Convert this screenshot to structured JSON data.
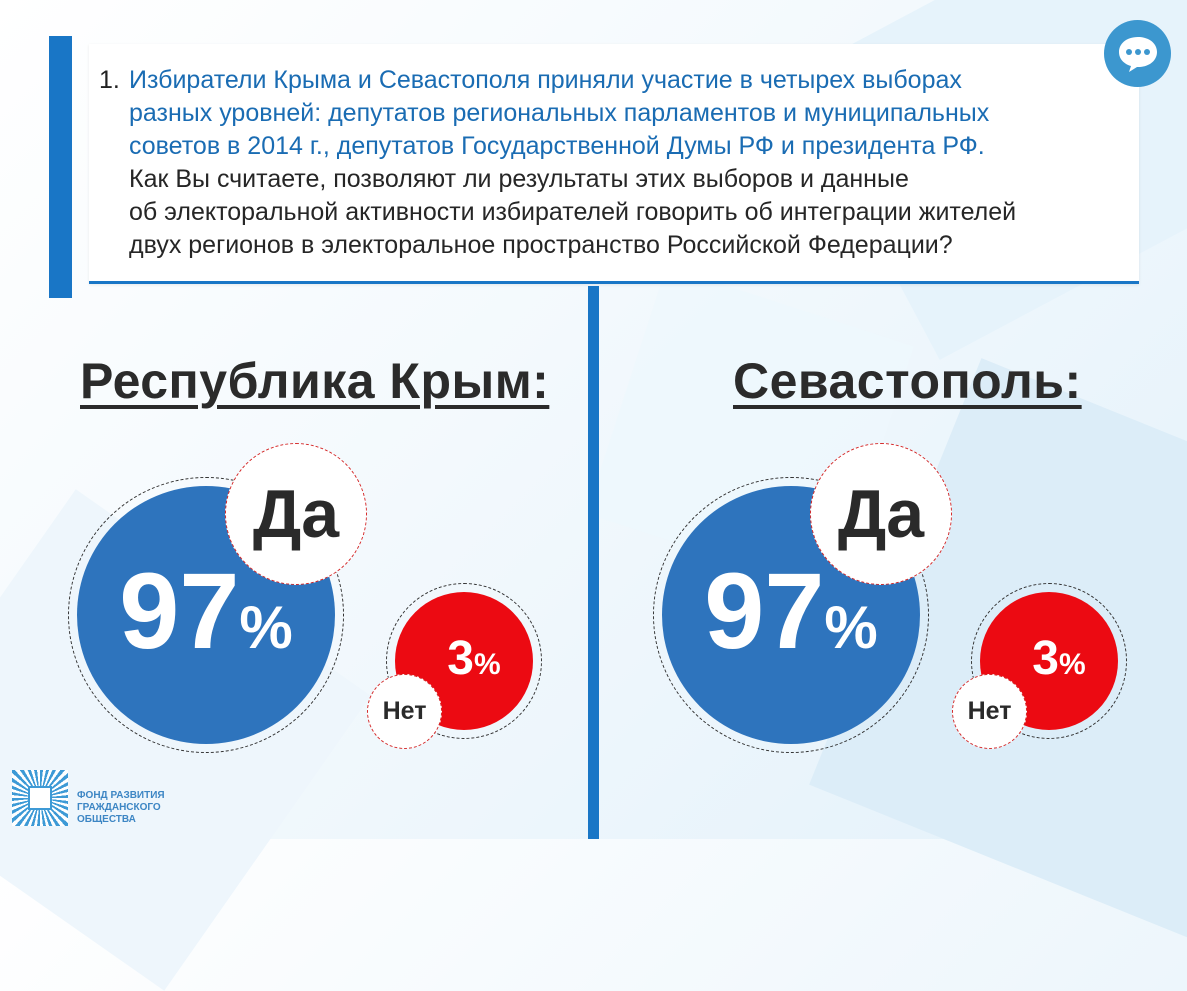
{
  "question": {
    "number": "1.",
    "highlight_lines": [
      "Избиратели Крыма и Севастополя приняли участие в четырех выборах",
      "разных уровней: депутатов региональных парламентов и муниципальных",
      "советов в 2014 г., депутатов Государственной Думы РФ и президента РФ."
    ],
    "plain_lines": [
      "Как Вы считаете, позволяют ли результаты этих выборов и данные",
      "об электоральной активности избирателей говорить об интеграции жителей",
      "двух регионов в электоральное пространство Российской Федерации?"
    ]
  },
  "regions": [
    {
      "title": "Республика Крым:",
      "yes_label": "Да",
      "yes_value": "97",
      "yes_percent": 97,
      "no_label": "Нет",
      "no_value": "3",
      "no_percent": 3,
      "percent_sign": "%"
    },
    {
      "title": "Севастополь:",
      "yes_label": "Да",
      "yes_value": "97",
      "yes_percent": 97,
      "no_label": "Нет",
      "no_value": "3",
      "no_percent": 3,
      "percent_sign": "%"
    }
  ],
  "logo": {
    "lines": [
      "ФОНД РАЗВИТИЯ",
      "ГРАЖДАНСКОГО",
      "ОБЩЕСТВА"
    ]
  },
  "colors": {
    "accent": "#1976c6",
    "yes_circle": "#2e74bd",
    "no_circle": "#ec0a12",
    "chat_button": "#3c97cf"
  },
  "icons": {
    "chat": "speech-bubble-ellipsis-icon"
  }
}
